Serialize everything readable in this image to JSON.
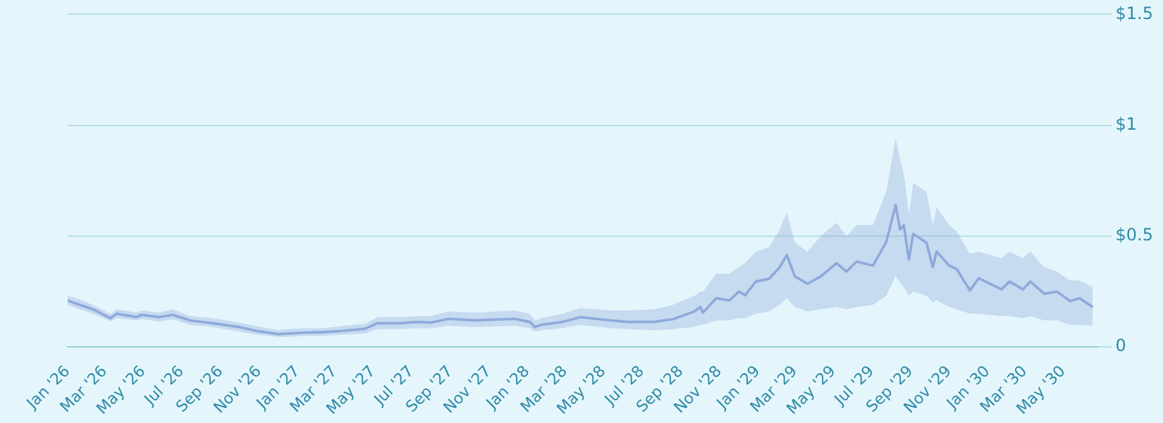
{
  "chart_data": {
    "type": "line",
    "x": [
      "2026-01-01",
      "2026-01-15",
      "2026-02-10",
      "2026-03-10",
      "2026-03-20",
      "2026-04-21",
      "2026-04-28",
      "2026-05-26",
      "2026-06-17",
      "2026-07-14",
      "2026-08-19",
      "2026-09-30",
      "2026-10-27",
      "2026-12-02",
      "2026-12-14",
      "2027-01-13",
      "2027-02-10",
      "2027-03-15",
      "2027-04-18",
      "2027-05-08",
      "2027-06-13",
      "2027-07-10",
      "2027-08-01",
      "2027-08-29",
      "2027-10-10",
      "2027-12-12",
      "2028-01-05",
      "2028-01-13",
      "2028-01-23",
      "2028-02-26",
      "2028-03-25",
      "2028-05-12",
      "2028-06-09",
      "2028-07-20",
      "2028-08-19",
      "2028-09-22",
      "2028-10-02",
      "2028-10-06",
      "2028-10-27",
      "2028-11-17",
      "2028-12-02",
      "2028-12-12",
      "2028-12-29",
      "2029-01-19",
      "2029-02-05",
      "2029-02-16",
      "2029-03-01",
      "2029-03-21",
      "2029-04-11",
      "2029-05-06",
      "2029-05-22",
      "2029-06-07",
      "2029-07-03",
      "2029-07-24",
      "2029-08-08",
      "2029-08-15",
      "2029-08-21",
      "2029-08-29",
      "2029-09-05",
      "2029-09-26",
      "2029-10-06",
      "2029-10-12",
      "2029-11-01",
      "2029-11-13",
      "2029-12-04",
      "2029-12-18",
      "2030-01-23",
      "2030-02-05",
      "2030-02-26",
      "2030-03-10",
      "2030-04-01",
      "2030-04-21",
      "2030-05-12",
      "2030-05-27",
      "2030-06-17"
    ],
    "series": [
      {
        "color": "#8fa9da",
        "values": [
          0.21,
          0.195,
          0.17,
          0.13,
          0.15,
          0.135,
          0.145,
          0.135,
          0.145,
          0.12,
          0.107,
          0.09,
          0.073,
          0.058,
          0.06,
          0.065,
          0.067,
          0.073,
          0.082,
          0.107,
          0.107,
          0.113,
          0.11,
          0.127,
          0.12,
          0.127,
          0.113,
          0.09,
          0.1,
          0.113,
          0.135,
          0.12,
          0.113,
          0.113,
          0.125,
          0.16,
          0.18,
          0.155,
          0.22,
          0.21,
          0.25,
          0.233,
          0.295,
          0.307,
          0.36,
          0.415,
          0.318,
          0.285,
          0.318,
          0.378,
          0.34,
          0.385,
          0.367,
          0.473,
          0.64,
          0.53,
          0.55,
          0.395,
          0.51,
          0.47,
          0.36,
          0.43,
          0.367,
          0.351,
          0.255,
          0.31,
          0.26,
          0.295,
          0.26,
          0.295,
          0.24,
          0.25,
          0.207,
          0.22,
          0.18
        ],
        "lower": [
          0.19,
          0.175,
          0.15,
          0.115,
          0.13,
          0.12,
          0.125,
          0.115,
          0.125,
          0.1,
          0.09,
          0.07,
          0.055,
          0.045,
          0.045,
          0.05,
          0.05,
          0.055,
          0.06,
          0.08,
          0.08,
          0.085,
          0.085,
          0.095,
          0.09,
          0.095,
          0.085,
          0.07,
          0.075,
          0.085,
          0.1,
          0.085,
          0.08,
          0.075,
          0.08,
          0.09,
          0.1,
          0.1,
          0.12,
          0.12,
          0.13,
          0.13,
          0.15,
          0.16,
          0.19,
          0.22,
          0.18,
          0.16,
          0.17,
          0.18,
          0.17,
          0.18,
          0.19,
          0.23,
          0.32,
          0.29,
          0.27,
          0.23,
          0.25,
          0.23,
          0.2,
          0.21,
          0.18,
          0.17,
          0.15,
          0.15,
          0.14,
          0.14,
          0.13,
          0.14,
          0.12,
          0.12,
          0.1,
          0.1,
          0.095
        ],
        "upper": [
          0.23,
          0.22,
          0.19,
          0.15,
          0.17,
          0.155,
          0.165,
          0.155,
          0.17,
          0.14,
          0.13,
          0.11,
          0.095,
          0.075,
          0.08,
          0.085,
          0.085,
          0.095,
          0.105,
          0.135,
          0.135,
          0.14,
          0.14,
          0.16,
          0.155,
          0.165,
          0.15,
          0.12,
          0.13,
          0.15,
          0.175,
          0.165,
          0.165,
          0.17,
          0.19,
          0.23,
          0.25,
          0.25,
          0.33,
          0.33,
          0.36,
          0.38,
          0.43,
          0.45,
          0.53,
          0.607,
          0.47,
          0.43,
          0.5,
          0.56,
          0.5,
          0.55,
          0.55,
          0.7,
          0.94,
          0.85,
          0.78,
          0.6,
          0.74,
          0.7,
          0.55,
          0.63,
          0.55,
          0.52,
          0.42,
          0.43,
          0.4,
          0.43,
          0.4,
          0.43,
          0.36,
          0.34,
          0.3,
          0.3,
          0.27
        ]
      }
    ],
    "xlim": [
      "2026-01-01",
      "2030-06-24"
    ],
    "xticks": [
      {
        "value": "2026-01-01",
        "label": "Jan '26"
      },
      {
        "value": "2026-03-01",
        "label": "Mar '26"
      },
      {
        "value": "2026-05-01",
        "label": "May '26"
      },
      {
        "value": "2026-07-01",
        "label": "Jul '26"
      },
      {
        "value": "2026-09-01",
        "label": "Sep '26"
      },
      {
        "value": "2026-11-01",
        "label": "Nov '26"
      },
      {
        "value": "2027-01-01",
        "label": "Jan '27"
      },
      {
        "value": "2027-03-01",
        "label": "Mar '27"
      },
      {
        "value": "2027-05-01",
        "label": "May '27"
      },
      {
        "value": "2027-07-01",
        "label": "Jul '27"
      },
      {
        "value": "2027-09-01",
        "label": "Sep '27"
      },
      {
        "value": "2027-11-01",
        "label": "Nov '27"
      },
      {
        "value": "2028-01-01",
        "label": "Jan '28"
      },
      {
        "value": "2028-03-01",
        "label": "Mar '28"
      },
      {
        "value": "2028-05-01",
        "label": "May '28"
      },
      {
        "value": "2028-07-01",
        "label": "Jul '28"
      },
      {
        "value": "2028-09-01",
        "label": "Sep '28"
      },
      {
        "value": "2028-11-01",
        "label": "Nov '28"
      },
      {
        "value": "2029-01-01",
        "label": "Jan '29"
      },
      {
        "value": "2029-03-01",
        "label": "Mar '29"
      },
      {
        "value": "2029-05-01",
        "label": "May '29"
      },
      {
        "value": "2029-07-01",
        "label": "Jul '29"
      },
      {
        "value": "2029-09-01",
        "label": "Sep '29"
      },
      {
        "value": "2029-11-01",
        "label": "Nov '29"
      },
      {
        "value": "2030-01-01",
        "label": "Jan '30"
      },
      {
        "value": "2030-03-01",
        "label": "Mar '30"
      },
      {
        "value": "2030-05-01",
        "label": "May '30"
      }
    ],
    "ylim": [
      0,
      1.5
    ],
    "yticks": [
      0,
      {
        "value": 0.5,
        "label": "$0.5"
      },
      {
        "value": 1,
        "label": "$1"
      },
      {
        "value": 1.5,
        "label": "$1.5"
      }
    ],
    "grid": "y",
    "marker": "none",
    "line_style": "solid"
  }
}
